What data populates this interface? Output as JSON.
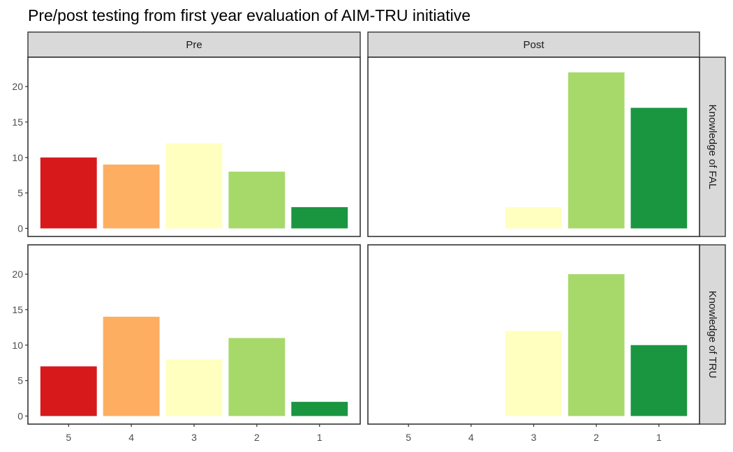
{
  "chart_data": {
    "type": "bar",
    "title": "Pre/post testing from first year evaluation of AIM-TRU initiative",
    "xlabel": "",
    "ylabel": "",
    "categories": [
      "5",
      "4",
      "3",
      "2",
      "1"
    ],
    "colors": [
      "#d7191c",
      "#fdae61",
      "#ffffbf",
      "#a6d96a",
      "#1a9641"
    ],
    "ylim": [
      0,
      23
    ],
    "yticks": [
      0,
      5,
      10,
      15,
      20
    ],
    "grid": false,
    "legend": "none",
    "facet_cols": [
      "Pre",
      "Post"
    ],
    "facet_rows": [
      "Knowledge of FAL",
      "Knowledge of TRU"
    ],
    "panels": [
      {
        "row": "Knowledge of FAL",
        "col": "Pre",
        "values": [
          10,
          9,
          12,
          8,
          3
        ]
      },
      {
        "row": "Knowledge of FAL",
        "col": "Post",
        "values": [
          0,
          0,
          3,
          22,
          17
        ]
      },
      {
        "row": "Knowledge of TRU",
        "col": "Pre",
        "values": [
          7,
          14,
          8,
          11,
          2
        ]
      },
      {
        "row": "Knowledge of TRU",
        "col": "Post",
        "values": [
          0,
          0,
          12,
          20,
          10
        ]
      }
    ]
  }
}
